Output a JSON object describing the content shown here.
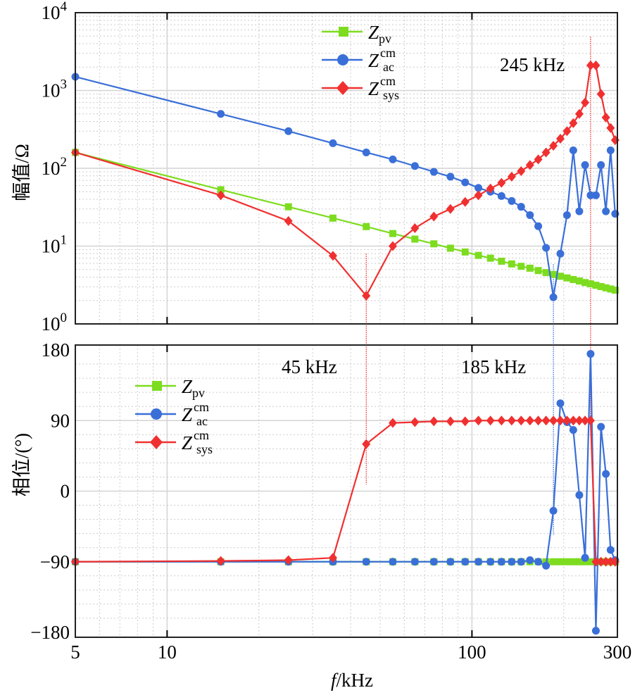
{
  "chart_data": [
    {
      "type": "line",
      "panel": "magnitude",
      "xscale": "log",
      "yscale": "log",
      "xlim": [
        5,
        300
      ],
      "ylim": [
        1,
        10000
      ],
      "xlabel": "f/kHz",
      "ylabel": "幅值/Ω",
      "yticks": [
        {
          "base": "10",
          "exp": "0",
          "v": 1
        },
        {
          "base": "10",
          "exp": "1",
          "v": 10
        },
        {
          "base": "10",
          "exp": "2",
          "v": 100
        },
        {
          "base": "10",
          "exp": "3",
          "v": 1000
        },
        {
          "base": "10",
          "exp": "4",
          "v": 10000
        }
      ],
      "x": [
        5,
        15,
        25,
        35,
        45,
        55,
        65,
        75,
        85,
        95,
        105,
        115,
        125,
        135,
        145,
        155,
        165,
        175,
        185,
        195,
        205,
        215,
        225,
        235,
        245,
        255,
        265,
        275,
        285,
        295
      ],
      "series": [
        {
          "name": "Z_pv",
          "label_main": "Z",
          "label_sub": "pv",
          "label_sup": "",
          "color": "#7ddc1f",
          "marker": "square",
          "values": [
            160,
            53,
            32,
            22.9,
            17.8,
            14.5,
            12.3,
            10.7,
            9.4,
            8.4,
            7.6,
            7.0,
            6.4,
            5.9,
            5.5,
            5.2,
            4.85,
            4.57,
            4.32,
            4.1,
            3.9,
            3.72,
            3.56,
            3.4,
            3.27,
            3.14,
            3.02,
            2.91,
            2.81,
            2.71
          ]
        },
        {
          "name": "Z_ac^cm",
          "label_main": "Z",
          "label_sub": "ac",
          "label_sup": "cm",
          "color": "#3a6fd8",
          "marker": "circle",
          "values": [
            1500,
            500,
            300,
            210,
            160,
            130,
            107,
            90,
            78,
            66,
            56,
            50,
            44,
            38,
            32,
            25,
            18,
            9.5,
            2.2,
            8,
            25,
            170,
            28,
            110,
            45,
            45,
            110,
            28,
            170,
            26
          ]
        },
        {
          "name": "Z_sys^cm",
          "label_main": "Z",
          "label_sub": "sys",
          "label_sup": "cm",
          "color": "#f03030",
          "marker": "diamond",
          "values": [
            160,
            45,
            21,
            7.5,
            2.3,
            10,
            17,
            24,
            30,
            37,
            45,
            55,
            65,
            78,
            92,
            110,
            130,
            160,
            195,
            240,
            300,
            380,
            500,
            700,
            2100,
            2100,
            900,
            450,
            330,
            230
          ]
        }
      ],
      "annotations": [
        {
          "text": "245 kHz",
          "x": 245
        }
      ],
      "markers": [
        {
          "x": 45,
          "color": "#f03030"
        },
        {
          "x": 185,
          "color": "#3a6fd8"
        },
        {
          "x": 245,
          "color": "#f03030"
        }
      ],
      "legend": "top-center"
    },
    {
      "type": "line",
      "panel": "phase",
      "xscale": "log",
      "xlim": [
        5,
        300
      ],
      "ylim": [
        -180,
        180
      ],
      "xlabel": "f/kHz",
      "xlabel_italic": "f",
      "xlabel_rest": "/kHz",
      "ylabel": "相位/(°)",
      "xticks": [
        {
          "label": "5",
          "v": 5
        },
        {
          "label": "10",
          "v": 10
        },
        {
          "label": "100",
          "v": 100
        },
        {
          "label": "300",
          "v": 300
        }
      ],
      "yticks": [
        {
          "label": "180",
          "v": 180
        },
        {
          "label": "90",
          "v": 90
        },
        {
          "label": "0",
          "v": 0
        },
        {
          "label": "−90",
          "v": -90
        },
        {
          "label": "−180",
          "v": -180
        }
      ],
      "x": [
        5,
        15,
        25,
        35,
        45,
        55,
        65,
        75,
        85,
        95,
        105,
        115,
        125,
        135,
        145,
        155,
        165,
        175,
        185,
        195,
        205,
        215,
        225,
        235,
        245,
        255,
        265,
        275,
        285,
        295
      ],
      "series": [
        {
          "name": "Z_pv",
          "color": "#7ddc1f",
          "marker": "square",
          "values": [
            -90,
            -90,
            -90,
            -90,
            -90,
            -90,
            -90,
            -90,
            -90,
            -90,
            -90,
            -90,
            -90,
            -90,
            -90,
            -90,
            -90,
            -90,
            -90,
            -90,
            -90,
            -90,
            -90,
            -90,
            -90,
            -90,
            -90,
            -90,
            -90,
            -90
          ]
        },
        {
          "name": "Z_ac^cm",
          "color": "#3a6fd8",
          "marker": "circle",
          "values": [
            -90,
            -90,
            -90,
            -90,
            -90,
            -90,
            -90,
            -90,
            -90,
            -90,
            -90,
            -90,
            -90,
            -90,
            -90,
            -88,
            -90,
            -95,
            -25,
            112,
            88,
            78,
            -5,
            -85,
            175,
            -178,
            82,
            22,
            -75,
            -88
          ]
        },
        {
          "name": "Z_sys^cm",
          "color": "#f03030",
          "marker": "diamond",
          "values": [
            -90,
            -89,
            -88,
            -85,
            60,
            87,
            88,
            89,
            89,
            89,
            90,
            90,
            90,
            90,
            90,
            90,
            90,
            90,
            90,
            90,
            90,
            90,
            90,
            90,
            90,
            -90,
            -90,
            -90,
            -90,
            -90
          ]
        }
      ],
      "annotations": [
        {
          "text": "45 kHz",
          "x": 45
        },
        {
          "text": "185 kHz",
          "x": 185
        }
      ],
      "legend": "top-left"
    }
  ]
}
